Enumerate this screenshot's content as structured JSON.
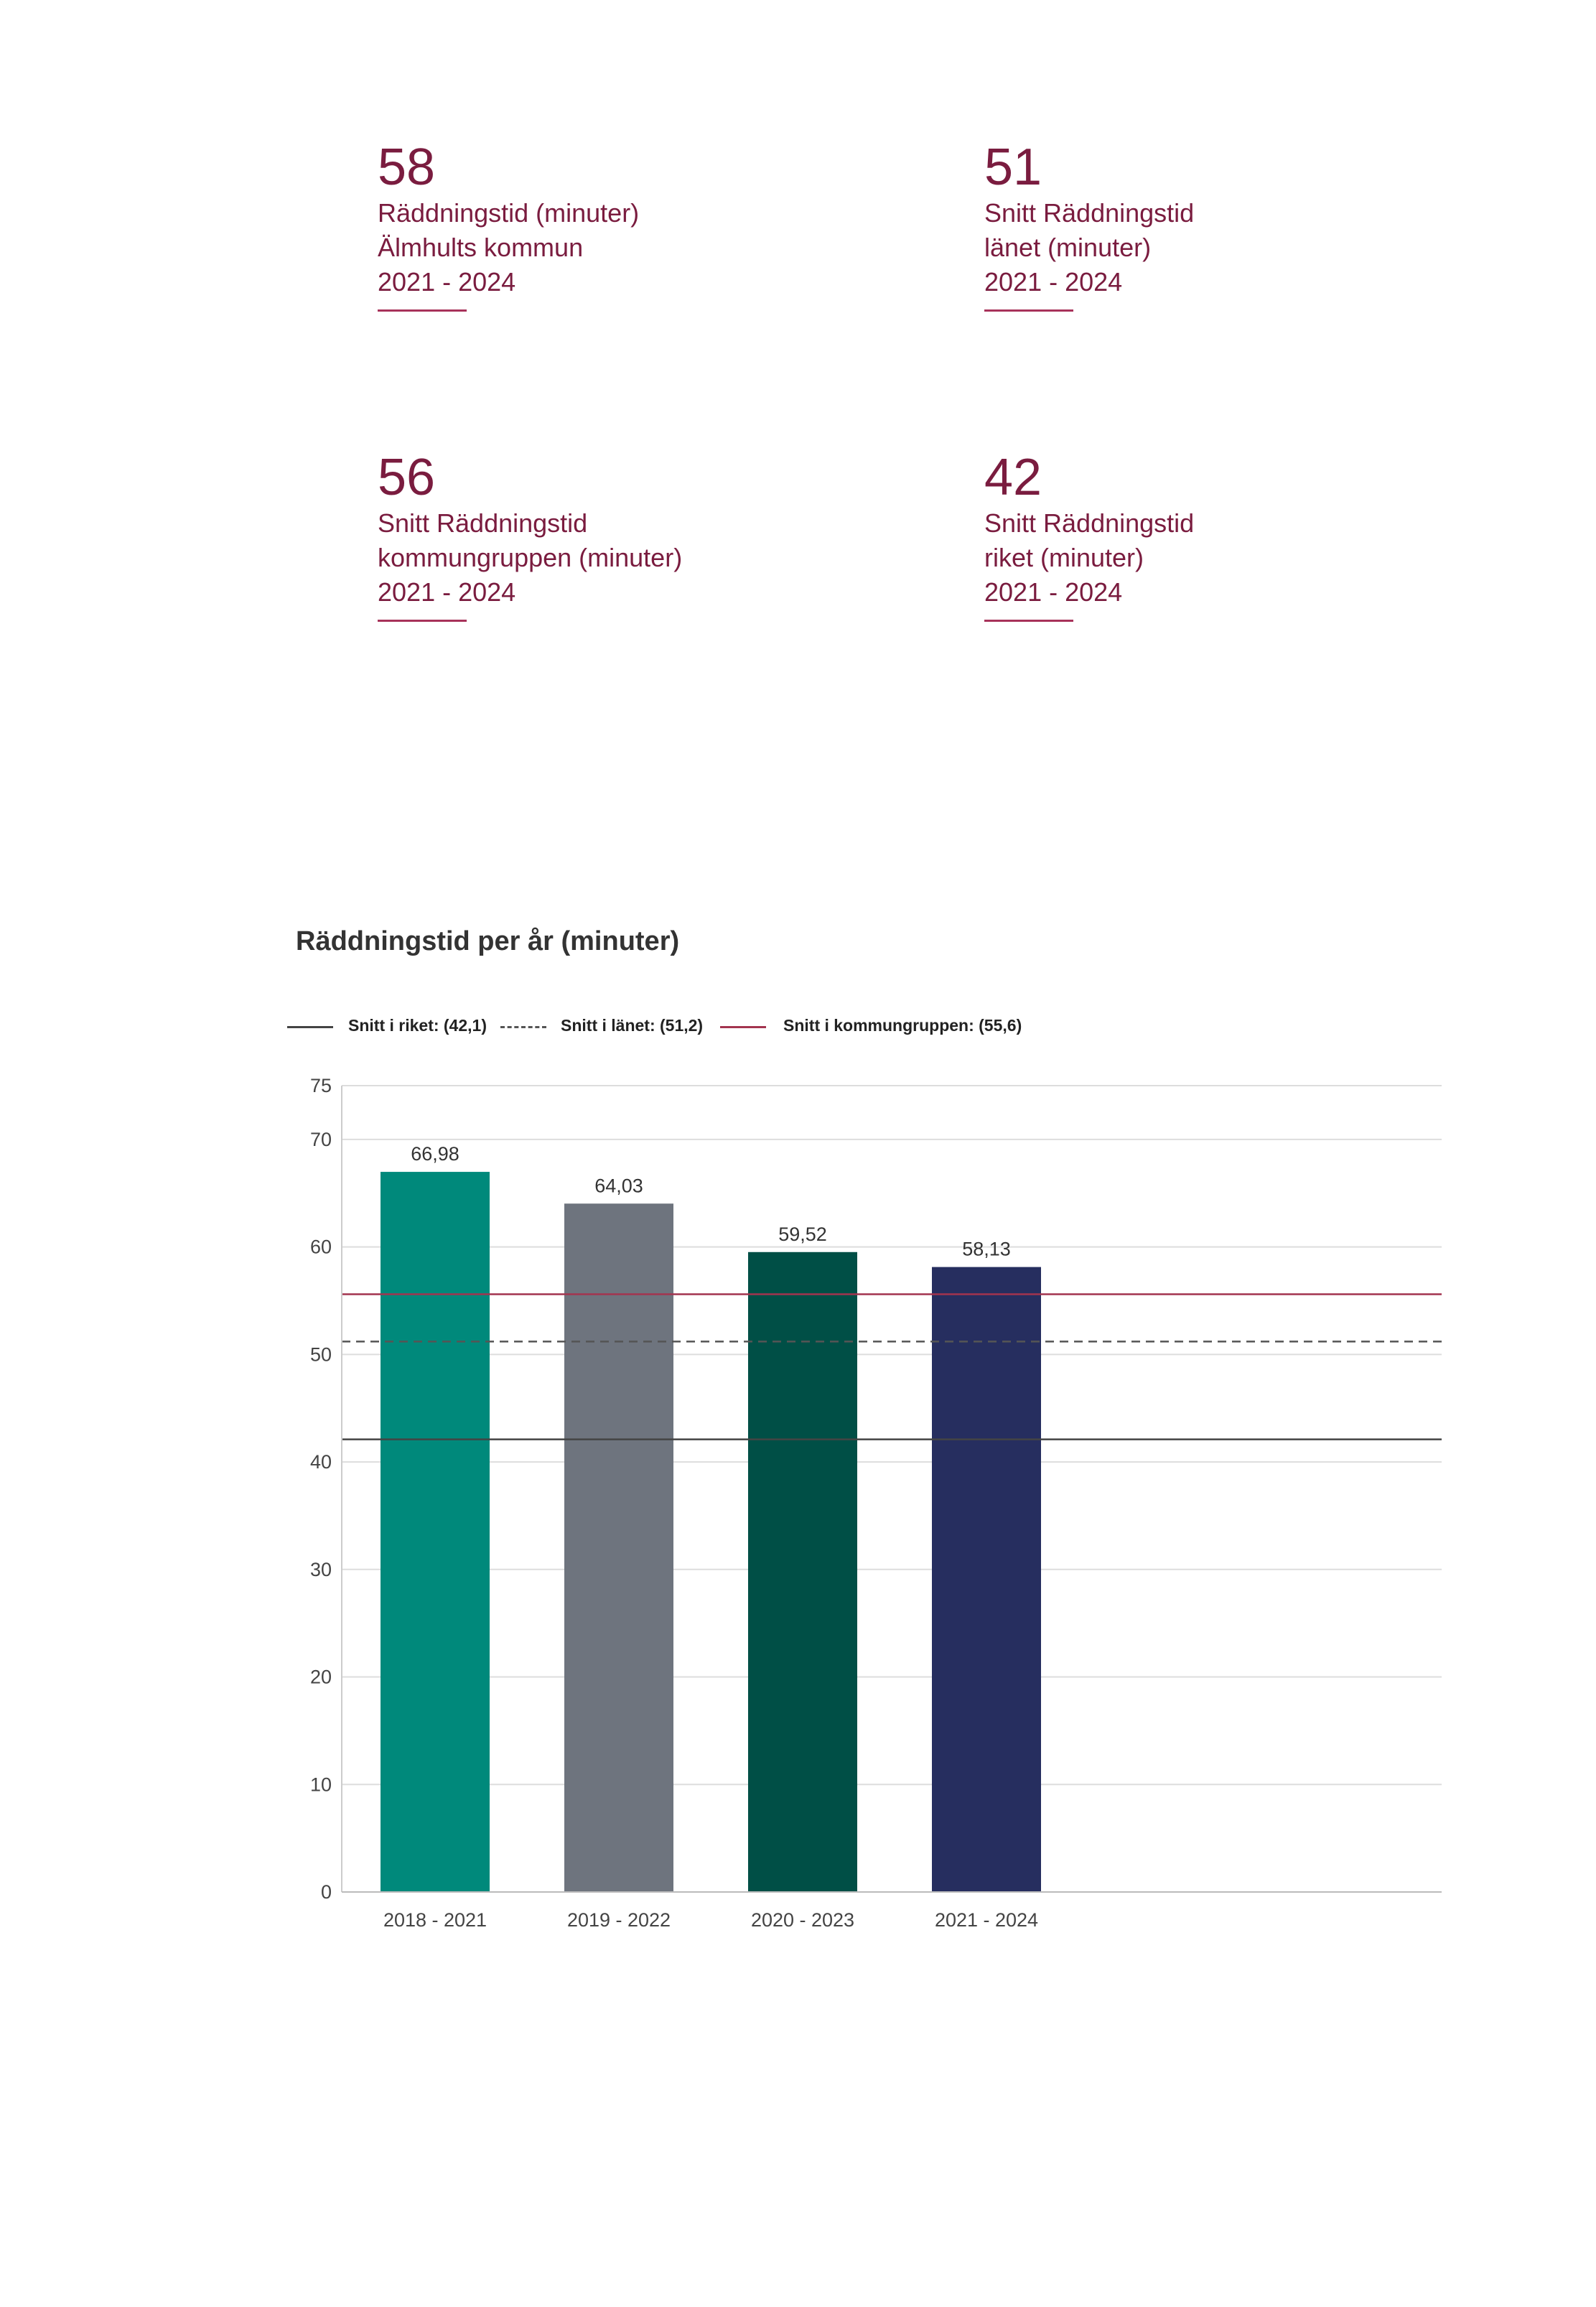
{
  "kpis": [
    {
      "value": "58",
      "lines": [
        "Räddningstid (minuter)",
        "Älmhults kommun",
        "2021 - 2024"
      ]
    },
    {
      "value": "51",
      "lines": [
        "Snitt Räddningstid",
        "länet (minuter)",
        "2021 - 2024"
      ]
    },
    {
      "value": "56",
      "lines": [
        "Snitt Räddningstid",
        "kommungruppen (minuter)",
        "2021 - 2024"
      ]
    },
    {
      "value": "42",
      "lines": [
        "Snitt Räddningstid",
        "riket (minuter)",
        "2021 - 2024"
      ]
    }
  ],
  "colors": {
    "accent": "#7a1c3f",
    "bars": [
      "#00897b",
      "#6e747e",
      "#004f46",
      "#262e5f"
    ],
    "riket_line": "#444444",
    "lanet_line": "#555555",
    "kommungrupp_line": "#a3344f"
  },
  "chart_data": {
    "type": "bar",
    "title": "Räddningstid per år (minuter)",
    "categories": [
      "2018 - 2021",
      "2019 - 2022",
      "2020 - 2023",
      "2021 - 2024"
    ],
    "values": [
      66.98,
      64.03,
      59.52,
      58.13
    ],
    "value_labels": [
      "66,98",
      "64,03",
      "59,52",
      "58,13"
    ],
    "ylim": [
      0,
      75
    ],
    "yticks": [
      0,
      10,
      20,
      30,
      40,
      50,
      60,
      70,
      75
    ],
    "grid": true,
    "legend_position": "top-left",
    "reference_lines": [
      {
        "name": "Snitt i riket: (42,1)",
        "value": 42.1,
        "style": "solid"
      },
      {
        "name": "Snitt i länet: (51,2)",
        "value": 51.2,
        "style": "dashed"
      },
      {
        "name": "Snitt i kommungruppen: (55,6)",
        "value": 55.6,
        "style": "solid-accent"
      }
    ]
  }
}
